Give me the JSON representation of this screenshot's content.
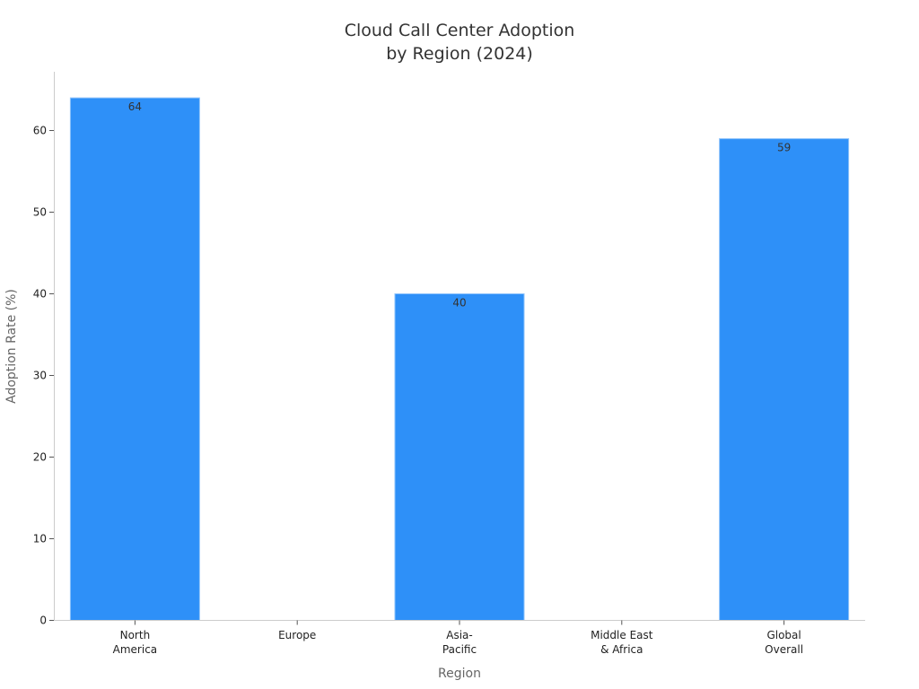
{
  "chart_data": {
    "type": "bar",
    "title": [
      "Cloud Call Center Adoption",
      "by Region (2024)"
    ],
    "xlabel": "Region",
    "ylabel": "Adoption Rate (%)",
    "categories": [
      [
        "North",
        "America"
      ],
      [
        "Europe"
      ],
      [
        "Asia-",
        "Pacific"
      ],
      [
        "Middle East",
        "& Africa"
      ],
      [
        "Global",
        "Overall"
      ]
    ],
    "values": [
      64,
      null,
      40,
      null,
      59
    ],
    "data_labels": [
      "64",
      "",
      "40",
      "",
      "59"
    ],
    "ylim": [
      0,
      67
    ],
    "yticks": [
      0,
      10,
      20,
      30,
      40,
      50,
      60
    ],
    "grid": false,
    "legend": "none",
    "colors": {
      "bar": "#2e90f8",
      "bar_edge": "#8ec3fb",
      "axis": "#cccccc",
      "tick": "#555555"
    }
  }
}
